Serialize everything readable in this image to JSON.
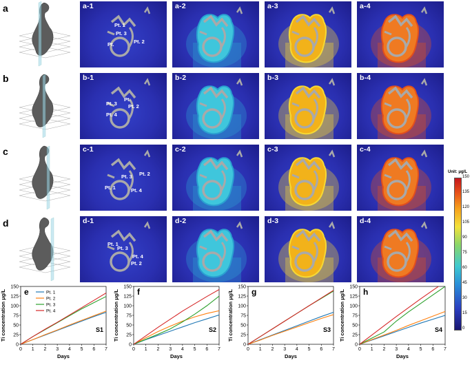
{
  "rows": [
    {
      "letter": "a",
      "panels": [
        "a-1",
        "a-2",
        "a-3",
        "a-4"
      ],
      "points": [
        "Pt. 1",
        "Pt. 3",
        "Pt. 2",
        "Pt."
      ]
    },
    {
      "letter": "b",
      "panels": [
        "b-1",
        "b-2",
        "b-3",
        "b-4"
      ],
      "points": [
        "Pt. 3",
        "Pt. 2",
        "Pt. 4",
        "Pt."
      ]
    },
    {
      "letter": "c",
      "panels": [
        "c-1",
        "c-2",
        "c-3",
        "c-4"
      ],
      "points": [
        "Pt. 2",
        "Pt. 3",
        "Pt. 1",
        "Pt. 4"
      ]
    },
    {
      "letter": "d",
      "panels": [
        "d-1",
        "d-2",
        "d-3",
        "d-4"
      ],
      "points": [
        "Pt. 1",
        "Pt. 3",
        "Pt. 4",
        "Pt. 2"
      ]
    }
  ],
  "colorbar": {
    "title": "Unit: μg/L",
    "ticks": [
      "150",
      "135",
      "120",
      "105",
      "90",
      "75",
      "60",
      "45",
      "30",
      "15",
      "0"
    ],
    "colors": [
      "#1a1670",
      "#2b3ec0",
      "#2a8fd8",
      "#3fc9d0",
      "#8ad66a",
      "#f3e23a",
      "#f6a11c",
      "#e8541a",
      "#c4161c"
    ]
  },
  "legend": [
    {
      "name": "Pt. 1",
      "color": "#1f77b4"
    },
    {
      "name": "Pt. 2",
      "color": "#ff7f0e"
    },
    {
      "name": "Pt. 3",
      "color": "#2ca02c"
    },
    {
      "name": "Pt. 4",
      "color": "#d62728"
    }
  ],
  "chart_data": [
    {
      "type": "line",
      "panel": "e",
      "label": "S1",
      "xlabel": "Days",
      "ylabel": "Ti concentration μg/L",
      "xlim": [
        0,
        7
      ],
      "ylim": [
        0,
        150
      ],
      "xticks": [
        0,
        1,
        2,
        3,
        4,
        5,
        6,
        7
      ],
      "yticks": [
        0,
        25,
        50,
        75,
        100,
        125,
        150
      ],
      "x": [
        0,
        1,
        2,
        3,
        4,
        5,
        6,
        7
      ],
      "series": [
        {
          "name": "Pt. 1",
          "values": [
            0,
            12,
            24,
            36,
            48,
            60,
            72,
            83
          ]
        },
        {
          "name": "Pt. 2",
          "values": [
            0,
            12,
            25,
            37,
            50,
            62,
            74,
            86
          ]
        },
        {
          "name": "Pt. 3",
          "values": [
            0,
            20,
            38,
            56,
            74,
            92,
            108,
            124
          ]
        },
        {
          "name": "Pt. 4",
          "values": [
            0,
            20,
            39,
            57,
            76,
            95,
            114,
            133
          ]
        }
      ]
    },
    {
      "type": "line",
      "panel": "f",
      "label": "S2",
      "xlabel": "Days",
      "ylabel": "Ti concentration μg/L",
      "xlim": [
        0,
        7
      ],
      "ylim": [
        0,
        150
      ],
      "xticks": [
        0,
        1,
        2,
        3,
        4,
        5,
        6,
        7
      ],
      "yticks": [
        0,
        25,
        50,
        75,
        100,
        125,
        150
      ],
      "x": [
        0,
        1,
        2,
        3,
        4,
        5,
        6,
        7
      ],
      "series": [
        {
          "name": "Pt. 1",
          "values": [
            0,
            12,
            23,
            34,
            45,
            56,
            66,
            76
          ]
        },
        {
          "name": "Pt. 2",
          "values": [
            0,
            17,
            33,
            47,
            60,
            71,
            80,
            87
          ]
        },
        {
          "name": "Pt. 3",
          "values": [
            0,
            13,
            26,
            40,
            58,
            78,
            100,
            125
          ]
        },
        {
          "name": "Pt. 4",
          "values": [
            0,
            22,
            44,
            65,
            86,
            105,
            124,
            142
          ]
        }
      ]
    },
    {
      "type": "line",
      "panel": "g",
      "label": "S3",
      "xlabel": "Days",
      "ylabel": "Ti concentration μg/L",
      "xlim": [
        0,
        7
      ],
      "ylim": [
        0,
        150
      ],
      "xticks": [
        0,
        1,
        2,
        3,
        4,
        5,
        6,
        7
      ],
      "yticks": [
        0,
        25,
        50,
        75,
        100,
        125,
        150
      ],
      "x": [
        0,
        1,
        2,
        3,
        4,
        5,
        6,
        7
      ],
      "series": [
        {
          "name": "Pt. 1",
          "values": [
            0,
            12,
            24,
            36,
            48,
            60,
            72,
            83
          ]
        },
        {
          "name": "Pt. 2",
          "values": [
            0,
            11,
            23,
            34,
            45,
            56,
            67,
            77
          ]
        },
        {
          "name": "Pt. 3",
          "values": [
            0,
            20,
            40,
            60,
            80,
            100,
            119,
            138
          ]
        },
        {
          "name": "Pt. 4",
          "values": [
            0,
            20,
            40,
            60,
            80,
            100,
            120,
            140
          ]
        }
      ]
    },
    {
      "type": "line",
      "panel": "h",
      "label": "S4",
      "xlabel": "Days",
      "ylabel": "Ti concentration μg/L",
      "xlim": [
        0,
        7
      ],
      "ylim": [
        0,
        150
      ],
      "xticks": [
        0,
        1,
        2,
        3,
        4,
        5,
        6,
        7
      ],
      "yticks": [
        0,
        25,
        50,
        75,
        100,
        125,
        150
      ],
      "x": [
        0,
        1,
        2,
        3,
        4,
        5,
        6,
        7
      ],
      "series": [
        {
          "name": "Pt. 1",
          "values": [
            0,
            11,
            22,
            33,
            44,
            55,
            65,
            75
          ]
        },
        {
          "name": "Pt. 2",
          "values": [
            0,
            12,
            24,
            36,
            49,
            61,
            73,
            85
          ]
        },
        {
          "name": "Pt. 3",
          "values": [
            0,
            16,
            32,
            60,
            84,
            106,
            128,
            150
          ]
        },
        {
          "name": "Pt. 4",
          "values": [
            0,
            24,
            48,
            72,
            95,
            118,
            140,
            162
          ]
        }
      ]
    }
  ]
}
